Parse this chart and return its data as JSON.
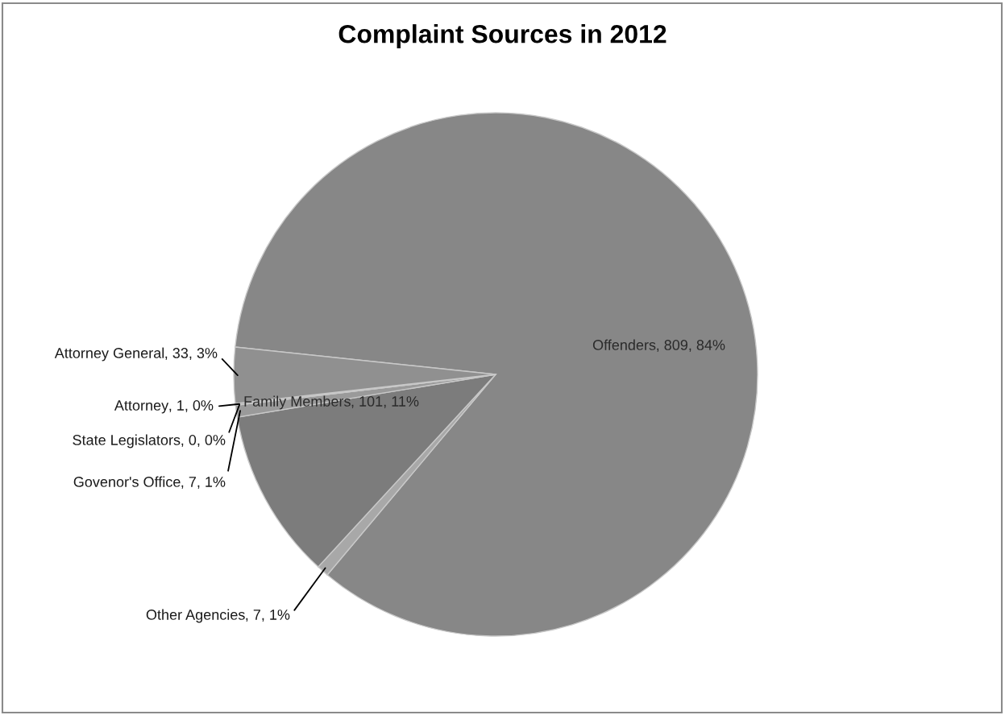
{
  "chart_data": {
    "type": "pie",
    "title": "Complaint Sources in 2012",
    "categories": [
      "Offenders",
      "Other Agencies",
      "Family Members",
      "Govenor's Office",
      "State Legislators",
      "Attorney",
      "Attorney General"
    ],
    "values": [
      809,
      7,
      101,
      7,
      0,
      1,
      33
    ],
    "colors": [
      "#878787",
      "#a8a8a8",
      "#7c7c7c",
      "#9a9a9a",
      "#c4c4c4",
      "#b2b2b2",
      "#909090"
    ],
    "value_labels": [
      ", 809, 84%",
      ", 7, 1%",
      ", 101, 11%",
      ", 7, 1%",
      ", 0, 0%",
      ", 1, 0%",
      ", 33, 3%"
    ]
  }
}
